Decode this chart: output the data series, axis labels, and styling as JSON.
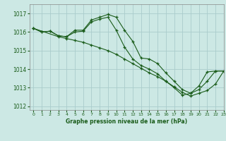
{
  "title": "Graphe pression niveau de la mer (hPa)",
  "bg_color": "#cce8e4",
  "grid_color": "#aacccc",
  "line_color": "#1a5c1a",
  "xlim": [
    -0.5,
    23
  ],
  "ylim": [
    1011.8,
    1017.5
  ],
  "yticks": [
    1012,
    1013,
    1014,
    1015,
    1016,
    1017
  ],
  "xticks": [
    0,
    1,
    2,
    3,
    4,
    5,
    6,
    7,
    8,
    9,
    10,
    11,
    12,
    13,
    14,
    15,
    16,
    17,
    18,
    19,
    20,
    21,
    22,
    23
  ],
  "lines": [
    {
      "x": [
        0,
        1,
        2,
        3,
        4,
        5,
        6,
        7,
        8,
        9,
        10,
        11,
        12,
        13,
        14,
        15,
        16,
        17,
        18,
        19,
        20,
        21,
        22,
        23
      ],
      "y": [
        1016.2,
        1016.0,
        1016.05,
        1015.8,
        1015.75,
        1016.1,
        1016.1,
        1016.65,
        1016.8,
        1016.95,
        1016.8,
        1016.1,
        1015.5,
        1014.6,
        1014.55,
        1014.3,
        1013.8,
        1013.35,
        1012.9,
        1012.7,
        1013.1,
        1013.85,
        1013.9,
        1013.9
      ]
    },
    {
      "x": [
        0,
        1,
        2,
        3,
        4,
        5,
        6,
        7,
        8,
        9,
        10,
        11,
        12,
        13,
        14,
        15,
        16,
        17,
        18,
        19,
        20,
        21,
        22,
        23
      ],
      "y": [
        1016.2,
        1016.0,
        1016.05,
        1015.8,
        1015.75,
        1016.0,
        1016.05,
        1016.55,
        1016.7,
        1016.8,
        1016.1,
        1015.2,
        1014.55,
        1014.2,
        1014.0,
        1013.75,
        1013.35,
        1013.0,
        1012.6,
        1012.7,
        1012.9,
        1013.35,
        1013.9,
        1013.9
      ]
    },
    {
      "x": [
        0,
        3,
        4,
        5,
        6,
        7,
        8,
        9,
        10,
        11,
        12,
        13,
        14,
        15,
        16,
        17,
        18,
        19,
        20,
        21,
        22,
        23
      ],
      "y": [
        1016.2,
        1015.75,
        1015.65,
        1015.55,
        1015.45,
        1015.3,
        1015.15,
        1015.0,
        1014.8,
        1014.55,
        1014.3,
        1014.05,
        1013.8,
        1013.6,
        1013.35,
        1013.05,
        1012.75,
        1012.55,
        1012.7,
        1012.85,
        1013.2,
        1013.9
      ]
    }
  ]
}
